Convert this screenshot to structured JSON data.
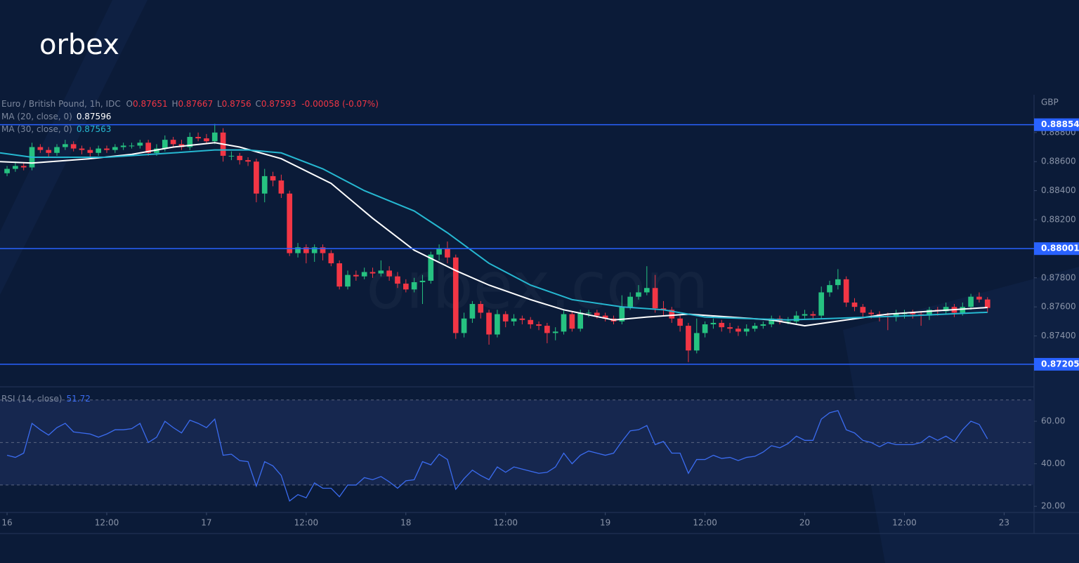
{
  "logo": "orbex",
  "watermark": "orbex.com",
  "chart_data": [
    {
      "type": "candlestick",
      "title": "Euro / British Pound, 1h, IDC",
      "ohlc_labels": [
        "O",
        "H",
        "L",
        "C"
      ],
      "change": "-0.00058 (-0.07%)",
      "currency": "GBP",
      "xlim": [
        -0.85,
        123.6
      ],
      "ylim": [
        0.8705,
        0.8906
      ],
      "yticks": [
        {
          "value": 0.874,
          "label": "0.87400"
        },
        {
          "value": 0.876,
          "label": "0.87600"
        },
        {
          "value": 0.878,
          "label": "0.87800"
        },
        {
          "value": 0.882,
          "label": "0.88200"
        },
        {
          "value": 0.884,
          "label": "0.88400"
        },
        {
          "value": 0.886,
          "label": "0.88600"
        },
        {
          "value": 0.888,
          "label": "0.88800"
        }
      ],
      "up_color": "#26c281",
      "down_color": "#f23645",
      "open": [
        0.8852,
        0.8855,
        0.8857,
        0.8856,
        0.887,
        0.8868,
        0.8866,
        0.887,
        0.8872,
        0.8869,
        0.8868,
        0.8866,
        0.8869,
        0.8868,
        0.887,
        0.8871,
        0.8871,
        0.8873,
        0.8866,
        0.8869,
        0.8875,
        0.8872,
        0.887,
        0.8877,
        0.8876,
        0.8874,
        0.888,
        0.8864,
        0.8864,
        0.8861,
        0.886,
        0.8838,
        0.885,
        0.8847,
        0.8838,
        0.8797,
        0.8801,
        0.8797,
        0.8801,
        0.8797,
        0.879,
        0.8774,
        0.8782,
        0.8781,
        0.8784,
        0.8783,
        0.8785,
        0.8781,
        0.8776,
        0.8772,
        0.8777,
        0.8778,
        0.8796,
        0.88,
        0.8794,
        0.8742,
        0.8752,
        0.8762,
        0.8756,
        0.8741,
        0.8755,
        0.875,
        0.8752,
        0.8751,
        0.8748,
        0.8747,
        0.8742,
        0.8743,
        0.8755,
        0.8745,
        0.8756,
        0.8756,
        0.8754,
        0.8752,
        0.875,
        0.876,
        0.8767,
        0.877,
        0.8773,
        0.8759,
        0.8758,
        0.8752,
        0.8747,
        0.873,
        0.8742,
        0.8748,
        0.8749,
        0.8746,
        0.8745,
        0.8743,
        0.8745,
        0.8747,
        0.8748,
        0.8752,
        0.875,
        0.875,
        0.8754,
        0.8755,
        0.8754,
        0.877,
        0.8775,
        0.8779,
        0.8763,
        0.876,
        0.8756,
        0.8755,
        0.8754,
        0.8753,
        0.8755,
        0.8756,
        0.8755,
        0.8754,
        0.8758,
        0.8757,
        0.876,
        0.8756,
        0.876,
        0.8767,
        0.87651
      ],
      "high": [
        0.8857,
        0.886,
        0.8859,
        0.8873,
        0.8872,
        0.887,
        0.8872,
        0.8875,
        0.8874,
        0.8871,
        0.887,
        0.8871,
        0.8871,
        0.8872,
        0.8873,
        0.8873,
        0.8875,
        0.8875,
        0.8872,
        0.8878,
        0.8877,
        0.8875,
        0.888,
        0.888,
        0.8879,
        0.8886,
        0.8883,
        0.8867,
        0.8866,
        0.8863,
        0.8862,
        0.8855,
        0.8853,
        0.8851,
        0.884,
        0.8804,
        0.8803,
        0.8803,
        0.8803,
        0.8799,
        0.8792,
        0.8785,
        0.8785,
        0.8787,
        0.8787,
        0.8792,
        0.8788,
        0.8784,
        0.8779,
        0.878,
        0.8782,
        0.8798,
        0.8803,
        0.8805,
        0.8796,
        0.8756,
        0.8764,
        0.8764,
        0.8758,
        0.8758,
        0.8757,
        0.8755,
        0.8754,
        0.8753,
        0.875,
        0.8749,
        0.8746,
        0.8758,
        0.8757,
        0.8758,
        0.8758,
        0.8758,
        0.8756,
        0.8754,
        0.8768,
        0.877,
        0.8775,
        0.8788,
        0.8782,
        0.8764,
        0.876,
        0.8754,
        0.8749,
        0.8752,
        0.875,
        0.8752,
        0.8751,
        0.8749,
        0.8747,
        0.8748,
        0.8749,
        0.875,
        0.8754,
        0.8754,
        0.8753,
        0.8757,
        0.8758,
        0.8757,
        0.8774,
        0.8778,
        0.8786,
        0.8781,
        0.8766,
        0.8762,
        0.8758,
        0.8757,
        0.8756,
        0.8758,
        0.8758,
        0.8758,
        0.8757,
        0.876,
        0.876,
        0.8763,
        0.8762,
        0.8763,
        0.8769,
        0.877,
        0.87667
      ],
      "low": [
        0.885,
        0.8853,
        0.8854,
        0.8854,
        0.8866,
        0.8863,
        0.8864,
        0.8868,
        0.8867,
        0.8865,
        0.8863,
        0.8864,
        0.8866,
        0.8866,
        0.8868,
        0.8869,
        0.8869,
        0.8864,
        0.8864,
        0.8867,
        0.887,
        0.8868,
        0.8868,
        0.8874,
        0.8872,
        0.8872,
        0.886,
        0.8861,
        0.8858,
        0.8857,
        0.8832,
        0.8832,
        0.8843,
        0.8835,
        0.8795,
        0.8794,
        0.879,
        0.8791,
        0.8792,
        0.8788,
        0.8772,
        0.8772,
        0.8778,
        0.8779,
        0.878,
        0.8781,
        0.8778,
        0.8773,
        0.877,
        0.877,
        0.8762,
        0.8776,
        0.8792,
        0.879,
        0.8738,
        0.8739,
        0.8749,
        0.8752,
        0.8734,
        0.8739,
        0.8746,
        0.8747,
        0.8748,
        0.8745,
        0.8744,
        0.8735,
        0.8737,
        0.8741,
        0.8743,
        0.8743,
        0.8753,
        0.8752,
        0.875,
        0.8748,
        0.8748,
        0.8758,
        0.8765,
        0.8768,
        0.8756,
        0.8754,
        0.8749,
        0.8743,
        0.8722,
        0.8728,
        0.8739,
        0.8745,
        0.8743,
        0.8742,
        0.874,
        0.874,
        0.8743,
        0.8745,
        0.8746,
        0.8748,
        0.8748,
        0.8748,
        0.8752,
        0.8751,
        0.8752,
        0.8767,
        0.8772,
        0.876,
        0.8757,
        0.8753,
        0.8752,
        0.875,
        0.8744,
        0.875,
        0.8752,
        0.8752,
        0.8747,
        0.8751,
        0.8754,
        0.8755,
        0.8753,
        0.8754,
        0.8758,
        0.8763,
        0.8756
      ],
      "close": [
        0.8855,
        0.8857,
        0.8856,
        0.887,
        0.8868,
        0.8866,
        0.887,
        0.8872,
        0.8869,
        0.8868,
        0.8866,
        0.8869,
        0.8868,
        0.887,
        0.8871,
        0.8871,
        0.8873,
        0.8866,
        0.8869,
        0.8875,
        0.8872,
        0.887,
        0.8877,
        0.8876,
        0.8874,
        0.888,
        0.8864,
        0.8864,
        0.8861,
        0.886,
        0.8838,
        0.885,
        0.8847,
        0.8838,
        0.8797,
        0.8801,
        0.8797,
        0.8801,
        0.8797,
        0.879,
        0.8774,
        0.8782,
        0.8781,
        0.8784,
        0.8783,
        0.8785,
        0.8781,
        0.8776,
        0.8772,
        0.8777,
        0.8778,
        0.8796,
        0.88,
        0.8794,
        0.8742,
        0.8752,
        0.8762,
        0.8756,
        0.8741,
        0.8755,
        0.875,
        0.8752,
        0.8751,
        0.8748,
        0.8747,
        0.8742,
        0.8743,
        0.8755,
        0.8745,
        0.8756,
        0.8756,
        0.8754,
        0.8752,
        0.875,
        0.876,
        0.8767,
        0.877,
        0.8773,
        0.8759,
        0.8758,
        0.8752,
        0.8747,
        0.873,
        0.8742,
        0.8748,
        0.8749,
        0.8746,
        0.8745,
        0.8743,
        0.8745,
        0.8747,
        0.8748,
        0.8752,
        0.875,
        0.875,
        0.8754,
        0.8755,
        0.8754,
        0.877,
        0.8775,
        0.8779,
        0.8763,
        0.876,
        0.8756,
        0.8755,
        0.8754,
        0.8753,
        0.8755,
        0.8756,
        0.8755,
        0.8754,
        0.8758,
        0.8757,
        0.876,
        0.8756,
        0.876,
        0.8767,
        0.87651,
        0.87593
      ],
      "series": [
        {
          "name": "MA (20, close, 0)",
          "color": "#ffffff",
          "x": [
            -0.85,
            3,
            10,
            15,
            20,
            25,
            28,
            33,
            39,
            44,
            49,
            54,
            58,
            63,
            67,
            73,
            77,
            82,
            87,
            92,
            96,
            101,
            106,
            111,
            118
          ],
          "values": [
            0.886,
            0.8859,
            0.8862,
            0.8865,
            0.887,
            0.8873,
            0.887,
            0.8862,
            0.8845,
            0.8821,
            0.8799,
            0.8785,
            0.8775,
            0.8765,
            0.8758,
            0.8751,
            0.8753,
            0.8755,
            0.8753,
            0.8751,
            0.8747,
            0.8751,
            0.8755,
            0.8757,
            0.87596
          ]
        },
        {
          "name": "MA (30, close, 0)",
          "color": "#26b8d1",
          "x": [
            -0.85,
            3,
            12,
            20,
            25,
            29,
            33,
            38,
            43,
            49,
            53,
            58,
            63,
            68,
            74,
            79,
            84,
            89,
            94,
            99,
            104,
            109,
            118
          ],
          "values": [
            0.8866,
            0.8863,
            0.8863,
            0.8866,
            0.8868,
            0.8868,
            0.8866,
            0.8855,
            0.884,
            0.8826,
            0.8811,
            0.879,
            0.8775,
            0.8765,
            0.876,
            0.8758,
            0.8753,
            0.8752,
            0.8751,
            0.8752,
            0.8753,
            0.8754,
            0.87563
          ]
        }
      ],
      "levels": [
        0.88854,
        0.88001,
        0.87205
      ],
      "level_color": "#2962ff"
    },
    {
      "type": "line",
      "xlim": [
        -0.85,
        123.6
      ],
      "ylim": [
        17.1,
        76.2
      ],
      "yticks": [
        {
          "value": 20,
          "label": "20.00"
        },
        {
          "value": 40,
          "label": "40.00"
        },
        {
          "value": 60,
          "label": "60.00"
        }
      ],
      "xticks": [
        {
          "value": 0,
          "label": "16"
        },
        {
          "value": 12,
          "label": "12:00"
        },
        {
          "value": 24,
          "label": "17"
        },
        {
          "value": 36,
          "label": "12:00"
        },
        {
          "value": 48,
          "label": "18"
        },
        {
          "value": 60,
          "label": "12:00"
        },
        {
          "value": 72,
          "label": "19"
        },
        {
          "value": 84,
          "label": "12:00"
        },
        {
          "value": 96,
          "label": "20"
        },
        {
          "value": 108,
          "label": "12:00"
        },
        {
          "value": 120,
          "label": "23"
        }
      ],
      "band": [
        30,
        70
      ],
      "midline": 50,
      "series": [
        {
          "name": "RSI (14, close)",
          "color": "#3b6cf0",
          "values": [
            44,
            43,
            45,
            59,
            56,
            53.5,
            57,
            59,
            55,
            54.5,
            54,
            52.5,
            54,
            56,
            56,
            56.5,
            59,
            50,
            52.5,
            60,
            57,
            54.5,
            60.5,
            59,
            57,
            61,
            44,
            44.5,
            41.5,
            41,
            29.5,
            41,
            39,
            34.5,
            22.5,
            25.5,
            24,
            31,
            28.5,
            28.5,
            24.5,
            30,
            30,
            33.5,
            32.5,
            34,
            31.5,
            28.5,
            32,
            32.5,
            41,
            39.5,
            44.5,
            42,
            28,
            33,
            37,
            34.5,
            32.5,
            38.5,
            36,
            38.5,
            37.5,
            36.5,
            35.5,
            36,
            38.5,
            45,
            40,
            44,
            46,
            45,
            44,
            45,
            50.5,
            55.5,
            56,
            58,
            49,
            50.5,
            45,
            45,
            35.5,
            42,
            42,
            44,
            42.5,
            43,
            41.5,
            43,
            43.5,
            45.5,
            48.5,
            47.5,
            49.5,
            53,
            51,
            51,
            61,
            64,
            65,
            56,
            54.5,
            51,
            50,
            48,
            50,
            49,
            49,
            49,
            50,
            53,
            51,
            53,
            50.5,
            56,
            60,
            58.5,
            51.72
          ]
        }
      ]
    }
  ]
}
